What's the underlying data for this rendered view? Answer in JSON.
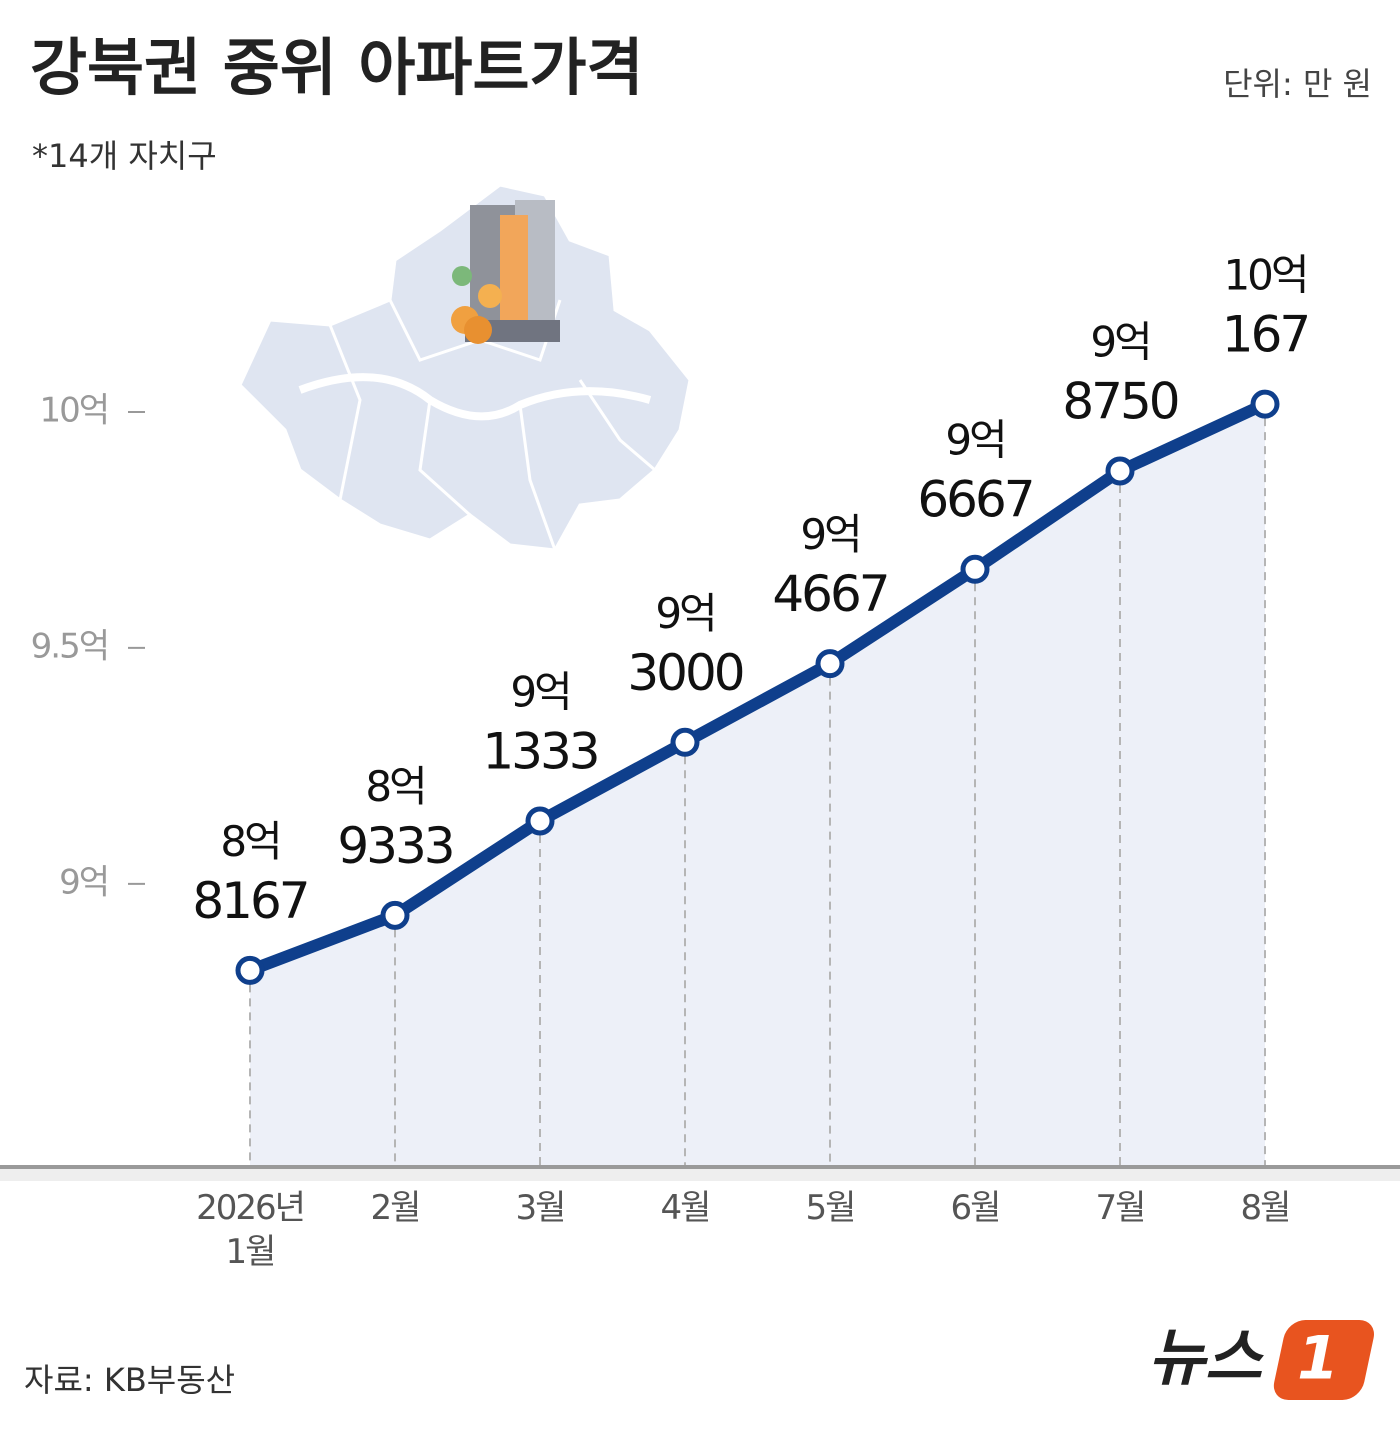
{
  "chart_data": {
    "type": "line",
    "title": "강북권 중위 아파트가격",
    "subtitle": "*14개 자치구",
    "unit": "단위: 만 원",
    "source": "자료:  KB부동산",
    "brand": [
      "뉴스",
      "1"
    ],
    "categories": [
      "2026년 1월",
      "2월",
      "3월",
      "4월",
      "5월",
      "6월",
      "7월",
      "8월"
    ],
    "series": [
      {
        "name": "강북권 중위 아파트가격",
        "color": "#0f3f8c",
        "values": [
          88167,
          89333,
          91333,
          93000,
          94667,
          96667,
          98750,
          100167
        ],
        "value_labels": [
          [
            "8억",
            "8167"
          ],
          [
            "8억",
            "9333"
          ],
          [
            "9억",
            "1333"
          ],
          [
            "9억",
            "3000"
          ],
          [
            "9억",
            "4667"
          ],
          [
            "9억",
            "6667"
          ],
          [
            "9억",
            "8750"
          ],
          [
            "10억",
            "167"
          ]
        ]
      }
    ],
    "ylim": [
      84000,
      105000
    ],
    "yticks": [
      {
        "value": 90000,
        "label": "9억"
      },
      {
        "value": 95000,
        "label": "9.5억"
      },
      {
        "value": 100000,
        "label": "10억"
      }
    ],
    "area_color": "#edf0f8"
  }
}
